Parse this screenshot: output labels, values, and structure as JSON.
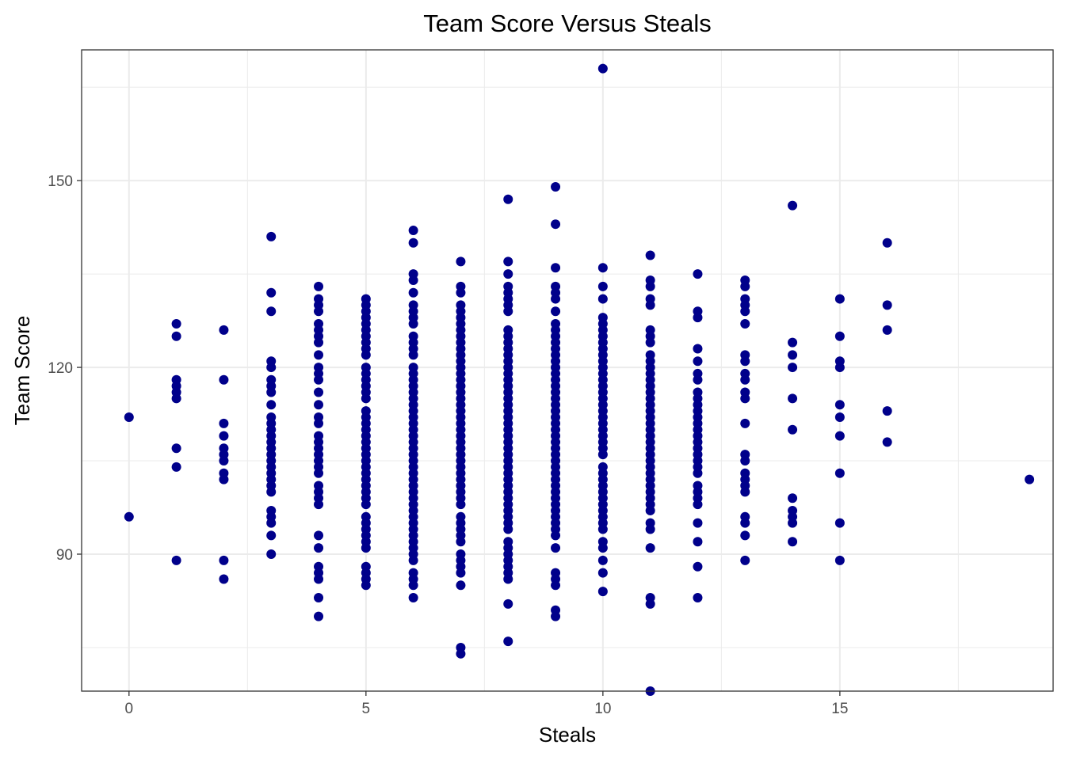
{
  "chart_data": {
    "type": "scatter",
    "title": "Team Score Versus Steals",
    "xlabel": "Steals",
    "ylabel": "Team Score",
    "xlim": [
      -1,
      19.5
    ],
    "ylim": [
      68,
      171
    ],
    "x_ticks": [
      0,
      5,
      10,
      15
    ],
    "y_ticks": [
      90,
      120,
      150
    ],
    "x_minor": [
      2.5,
      7.5,
      12.5,
      17.5
    ],
    "y_minor": [
      75,
      105,
      135,
      165
    ],
    "grid": true,
    "point_color": "#00008B",
    "grid_color": "#EBEBEB",
    "points": [
      [
        0,
        112
      ],
      [
        0,
        96
      ],
      [
        1,
        127
      ],
      [
        1,
        125
      ],
      [
        1,
        118
      ],
      [
        1,
        117
      ],
      [
        1,
        116
      ],
      [
        1,
        115
      ],
      [
        1,
        107
      ],
      [
        1,
        104
      ],
      [
        1,
        89
      ],
      [
        2,
        126
      ],
      [
        2,
        118
      ],
      [
        2,
        111
      ],
      [
        2,
        109
      ],
      [
        2,
        107
      ],
      [
        2,
        106
      ],
      [
        2,
        105
      ],
      [
        2,
        103
      ],
      [
        2,
        102
      ],
      [
        2,
        89
      ],
      [
        2,
        86
      ],
      [
        3,
        141
      ],
      [
        3,
        132
      ],
      [
        3,
        129
      ],
      [
        3,
        121
      ],
      [
        3,
        120
      ],
      [
        3,
        118
      ],
      [
        3,
        117
      ],
      [
        3,
        116
      ],
      [
        3,
        114
      ],
      [
        3,
        112
      ],
      [
        3,
        111
      ],
      [
        3,
        110
      ],
      [
        3,
        109
      ],
      [
        3,
        108
      ],
      [
        3,
        107
      ],
      [
        3,
        106
      ],
      [
        3,
        105
      ],
      [
        3,
        104
      ],
      [
        3,
        103
      ],
      [
        3,
        102
      ],
      [
        3,
        101
      ],
      [
        3,
        100
      ],
      [
        3,
        97
      ],
      [
        3,
        96
      ],
      [
        3,
        95
      ],
      [
        3,
        93
      ],
      [
        3,
        90
      ],
      [
        4,
        133
      ],
      [
        4,
        131
      ],
      [
        4,
        130
      ],
      [
        4,
        129
      ],
      [
        4,
        127
      ],
      [
        4,
        126
      ],
      [
        4,
        125
      ],
      [
        4,
        124
      ],
      [
        4,
        122
      ],
      [
        4,
        120
      ],
      [
        4,
        119
      ],
      [
        4,
        118
      ],
      [
        4,
        116
      ],
      [
        4,
        114
      ],
      [
        4,
        112
      ],
      [
        4,
        111
      ],
      [
        4,
        109
      ],
      [
        4,
        108
      ],
      [
        4,
        107
      ],
      [
        4,
        106
      ],
      [
        4,
        105
      ],
      [
        4,
        104
      ],
      [
        4,
        103
      ],
      [
        4,
        101
      ],
      [
        4,
        100
      ],
      [
        4,
        99
      ],
      [
        4,
        98
      ],
      [
        4,
        93
      ],
      [
        4,
        91
      ],
      [
        4,
        88
      ],
      [
        4,
        87
      ],
      [
        4,
        86
      ],
      [
        4,
        83
      ],
      [
        4,
        80
      ],
      [
        5,
        131
      ],
      [
        5,
        130
      ],
      [
        5,
        129
      ],
      [
        5,
        128
      ],
      [
        5,
        127
      ],
      [
        5,
        126
      ],
      [
        5,
        125
      ],
      [
        5,
        124
      ],
      [
        5,
        123
      ],
      [
        5,
        122
      ],
      [
        5,
        120
      ],
      [
        5,
        119
      ],
      [
        5,
        118
      ],
      [
        5,
        117
      ],
      [
        5,
        116
      ],
      [
        5,
        115
      ],
      [
        5,
        113
      ],
      [
        5,
        112
      ],
      [
        5,
        111
      ],
      [
        5,
        110
      ],
      [
        5,
        109
      ],
      [
        5,
        108
      ],
      [
        5,
        107
      ],
      [
        5,
        106
      ],
      [
        5,
        105
      ],
      [
        5,
        104
      ],
      [
        5,
        103
      ],
      [
        5,
        102
      ],
      [
        5,
        101
      ],
      [
        5,
        100
      ],
      [
        5,
        99
      ],
      [
        5,
        98
      ],
      [
        5,
        96
      ],
      [
        5,
        95
      ],
      [
        5,
        94
      ],
      [
        5,
        93
      ],
      [
        5,
        92
      ],
      [
        5,
        91
      ],
      [
        5,
        88
      ],
      [
        5,
        87
      ],
      [
        5,
        86
      ],
      [
        5,
        85
      ],
      [
        6,
        142
      ],
      [
        6,
        140
      ],
      [
        6,
        135
      ],
      [
        6,
        134
      ],
      [
        6,
        132
      ],
      [
        6,
        130
      ],
      [
        6,
        129
      ],
      [
        6,
        128
      ],
      [
        6,
        127
      ],
      [
        6,
        125
      ],
      [
        6,
        124
      ],
      [
        6,
        123
      ],
      [
        6,
        122
      ],
      [
        6,
        120
      ],
      [
        6,
        119
      ],
      [
        6,
        118
      ],
      [
        6,
        117
      ],
      [
        6,
        116
      ],
      [
        6,
        115
      ],
      [
        6,
        114
      ],
      [
        6,
        113
      ],
      [
        6,
        112
      ],
      [
        6,
        111
      ],
      [
        6,
        110
      ],
      [
        6,
        109
      ],
      [
        6,
        108
      ],
      [
        6,
        107
      ],
      [
        6,
        106
      ],
      [
        6,
        105
      ],
      [
        6,
        104
      ],
      [
        6,
        103
      ],
      [
        6,
        102
      ],
      [
        6,
        101
      ],
      [
        6,
        100
      ],
      [
        6,
        99
      ],
      [
        6,
        98
      ],
      [
        6,
        97
      ],
      [
        6,
        96
      ],
      [
        6,
        95
      ],
      [
        6,
        94
      ],
      [
        6,
        93
      ],
      [
        6,
        92
      ],
      [
        6,
        91
      ],
      [
        6,
        90
      ],
      [
        6,
        89
      ],
      [
        6,
        87
      ],
      [
        6,
        86
      ],
      [
        6,
        85
      ],
      [
        6,
        83
      ],
      [
        7,
        137
      ],
      [
        7,
        133
      ],
      [
        7,
        132
      ],
      [
        7,
        130
      ],
      [
        7,
        129
      ],
      [
        7,
        128
      ],
      [
        7,
        127
      ],
      [
        7,
        126
      ],
      [
        7,
        125
      ],
      [
        7,
        124
      ],
      [
        7,
        123
      ],
      [
        7,
        122
      ],
      [
        7,
        121
      ],
      [
        7,
        120
      ],
      [
        7,
        119
      ],
      [
        7,
        118
      ],
      [
        7,
        117
      ],
      [
        7,
        116
      ],
      [
        7,
        115
      ],
      [
        7,
        114
      ],
      [
        7,
        113
      ],
      [
        7,
        112
      ],
      [
        7,
        111
      ],
      [
        7,
        110
      ],
      [
        7,
        109
      ],
      [
        7,
        108
      ],
      [
        7,
        107
      ],
      [
        7,
        106
      ],
      [
        7,
        105
      ],
      [
        7,
        104
      ],
      [
        7,
        103
      ],
      [
        7,
        102
      ],
      [
        7,
        101
      ],
      [
        7,
        100
      ],
      [
        7,
        99
      ],
      [
        7,
        98
      ],
      [
        7,
        96
      ],
      [
        7,
        95
      ],
      [
        7,
        94
      ],
      [
        7,
        93
      ],
      [
        7,
        92
      ],
      [
        7,
        90
      ],
      [
        7,
        89
      ],
      [
        7,
        88
      ],
      [
        7,
        87
      ],
      [
        7,
        85
      ],
      [
        7,
        75
      ],
      [
        7,
        74
      ],
      [
        8,
        147
      ],
      [
        8,
        137
      ],
      [
        8,
        135
      ],
      [
        8,
        133
      ],
      [
        8,
        132
      ],
      [
        8,
        131
      ],
      [
        8,
        130
      ],
      [
        8,
        129
      ],
      [
        8,
        126
      ],
      [
        8,
        125
      ],
      [
        8,
        124
      ],
      [
        8,
        123
      ],
      [
        8,
        122
      ],
      [
        8,
        121
      ],
      [
        8,
        120
      ],
      [
        8,
        119
      ],
      [
        8,
        118
      ],
      [
        8,
        117
      ],
      [
        8,
        116
      ],
      [
        8,
        115
      ],
      [
        8,
        114
      ],
      [
        8,
        113
      ],
      [
        8,
        112
      ],
      [
        8,
        111
      ],
      [
        8,
        110
      ],
      [
        8,
        109
      ],
      [
        8,
        108
      ],
      [
        8,
        107
      ],
      [
        8,
        106
      ],
      [
        8,
        105
      ],
      [
        8,
        104
      ],
      [
        8,
        103
      ],
      [
        8,
        102
      ],
      [
        8,
        101
      ],
      [
        8,
        100
      ],
      [
        8,
        99
      ],
      [
        8,
        98
      ],
      [
        8,
        97
      ],
      [
        8,
        96
      ],
      [
        8,
        95
      ],
      [
        8,
        94
      ],
      [
        8,
        92
      ],
      [
        8,
        91
      ],
      [
        8,
        90
      ],
      [
        8,
        89
      ],
      [
        8,
        88
      ],
      [
        8,
        87
      ],
      [
        8,
        86
      ],
      [
        8,
        82
      ],
      [
        8,
        76
      ],
      [
        9,
        149
      ],
      [
        9,
        143
      ],
      [
        9,
        136
      ],
      [
        9,
        133
      ],
      [
        9,
        132
      ],
      [
        9,
        131
      ],
      [
        9,
        129
      ],
      [
        9,
        127
      ],
      [
        9,
        126
      ],
      [
        9,
        125
      ],
      [
        9,
        124
      ],
      [
        9,
        123
      ],
      [
        9,
        122
      ],
      [
        9,
        121
      ],
      [
        9,
        120
      ],
      [
        9,
        119
      ],
      [
        9,
        118
      ],
      [
        9,
        117
      ],
      [
        9,
        116
      ],
      [
        9,
        115
      ],
      [
        9,
        114
      ],
      [
        9,
        113
      ],
      [
        9,
        112
      ],
      [
        9,
        111
      ],
      [
        9,
        110
      ],
      [
        9,
        109
      ],
      [
        9,
        108
      ],
      [
        9,
        107
      ],
      [
        9,
        106
      ],
      [
        9,
        105
      ],
      [
        9,
        104
      ],
      [
        9,
        103
      ],
      [
        9,
        102
      ],
      [
        9,
        101
      ],
      [
        9,
        100
      ],
      [
        9,
        99
      ],
      [
        9,
        98
      ],
      [
        9,
        97
      ],
      [
        9,
        96
      ],
      [
        9,
        95
      ],
      [
        9,
        94
      ],
      [
        9,
        93
      ],
      [
        9,
        91
      ],
      [
        9,
        87
      ],
      [
        9,
        86
      ],
      [
        9,
        85
      ],
      [
        9,
        81
      ],
      [
        9,
        80
      ],
      [
        10,
        168
      ],
      [
        10,
        136
      ],
      [
        10,
        133
      ],
      [
        10,
        131
      ],
      [
        10,
        128
      ],
      [
        10,
        127
      ],
      [
        10,
        126
      ],
      [
        10,
        125
      ],
      [
        10,
        124
      ],
      [
        10,
        123
      ],
      [
        10,
        122
      ],
      [
        10,
        121
      ],
      [
        10,
        120
      ],
      [
        10,
        119
      ],
      [
        10,
        118
      ],
      [
        10,
        117
      ],
      [
        10,
        116
      ],
      [
        10,
        115
      ],
      [
        10,
        114
      ],
      [
        10,
        113
      ],
      [
        10,
        112
      ],
      [
        10,
        111
      ],
      [
        10,
        110
      ],
      [
        10,
        109
      ],
      [
        10,
        108
      ],
      [
        10,
        107
      ],
      [
        10,
        106
      ],
      [
        10,
        104
      ],
      [
        10,
        103
      ],
      [
        10,
        102
      ],
      [
        10,
        101
      ],
      [
        10,
        100
      ],
      [
        10,
        99
      ],
      [
        10,
        98
      ],
      [
        10,
        97
      ],
      [
        10,
        96
      ],
      [
        10,
        95
      ],
      [
        10,
        94
      ],
      [
        10,
        92
      ],
      [
        10,
        91
      ],
      [
        10,
        89
      ],
      [
        10,
        87
      ],
      [
        10,
        84
      ],
      [
        11,
        138
      ],
      [
        11,
        134
      ],
      [
        11,
        133
      ],
      [
        11,
        131
      ],
      [
        11,
        130
      ],
      [
        11,
        126
      ],
      [
        11,
        125
      ],
      [
        11,
        124
      ],
      [
        11,
        122
      ],
      [
        11,
        121
      ],
      [
        11,
        120
      ],
      [
        11,
        119
      ],
      [
        11,
        118
      ],
      [
        11,
        117
      ],
      [
        11,
        116
      ],
      [
        11,
        115
      ],
      [
        11,
        114
      ],
      [
        11,
        113
      ],
      [
        11,
        112
      ],
      [
        11,
        111
      ],
      [
        11,
        110
      ],
      [
        11,
        109
      ],
      [
        11,
        108
      ],
      [
        11,
        107
      ],
      [
        11,
        106
      ],
      [
        11,
        105
      ],
      [
        11,
        104
      ],
      [
        11,
        103
      ],
      [
        11,
        102
      ],
      [
        11,
        101
      ],
      [
        11,
        100
      ],
      [
        11,
        99
      ],
      [
        11,
        98
      ],
      [
        11,
        97
      ],
      [
        11,
        95
      ],
      [
        11,
        94
      ],
      [
        11,
        91
      ],
      [
        11,
        83
      ],
      [
        11,
        82
      ],
      [
        11,
        68
      ],
      [
        12,
        135
      ],
      [
        12,
        129
      ],
      [
        12,
        128
      ],
      [
        12,
        123
      ],
      [
        12,
        121
      ],
      [
        12,
        119
      ],
      [
        12,
        118
      ],
      [
        12,
        116
      ],
      [
        12,
        115
      ],
      [
        12,
        114
      ],
      [
        12,
        113
      ],
      [
        12,
        112
      ],
      [
        12,
        111
      ],
      [
        12,
        110
      ],
      [
        12,
        109
      ],
      [
        12,
        108
      ],
      [
        12,
        107
      ],
      [
        12,
        106
      ],
      [
        12,
        105
      ],
      [
        12,
        104
      ],
      [
        12,
        103
      ],
      [
        12,
        101
      ],
      [
        12,
        100
      ],
      [
        12,
        99
      ],
      [
        12,
        98
      ],
      [
        12,
        95
      ],
      [
        12,
        92
      ],
      [
        12,
        88
      ],
      [
        12,
        83
      ],
      [
        13,
        134
      ],
      [
        13,
        133
      ],
      [
        13,
        131
      ],
      [
        13,
        130
      ],
      [
        13,
        129
      ],
      [
        13,
        127
      ],
      [
        13,
        122
      ],
      [
        13,
        121
      ],
      [
        13,
        119
      ],
      [
        13,
        118
      ],
      [
        13,
        116
      ],
      [
        13,
        115
      ],
      [
        13,
        111
      ],
      [
        13,
        106
      ],
      [
        13,
        105
      ],
      [
        13,
        103
      ],
      [
        13,
        102
      ],
      [
        13,
        101
      ],
      [
        13,
        100
      ],
      [
        13,
        96
      ],
      [
        13,
        95
      ],
      [
        13,
        93
      ],
      [
        13,
        89
      ],
      [
        14,
        146
      ],
      [
        14,
        124
      ],
      [
        14,
        122
      ],
      [
        14,
        120
      ],
      [
        14,
        115
      ],
      [
        14,
        110
      ],
      [
        14,
        99
      ],
      [
        14,
        97
      ],
      [
        14,
        96
      ],
      [
        14,
        95
      ],
      [
        14,
        92
      ],
      [
        15,
        131
      ],
      [
        15,
        125
      ],
      [
        15,
        121
      ],
      [
        15,
        120
      ],
      [
        15,
        114
      ],
      [
        15,
        112
      ],
      [
        15,
        109
      ],
      [
        15,
        103
      ],
      [
        15,
        95
      ],
      [
        15,
        89
      ],
      [
        16,
        140
      ],
      [
        16,
        130
      ],
      [
        16,
        126
      ],
      [
        16,
        113
      ],
      [
        16,
        108
      ],
      [
        19,
        102
      ]
    ]
  }
}
